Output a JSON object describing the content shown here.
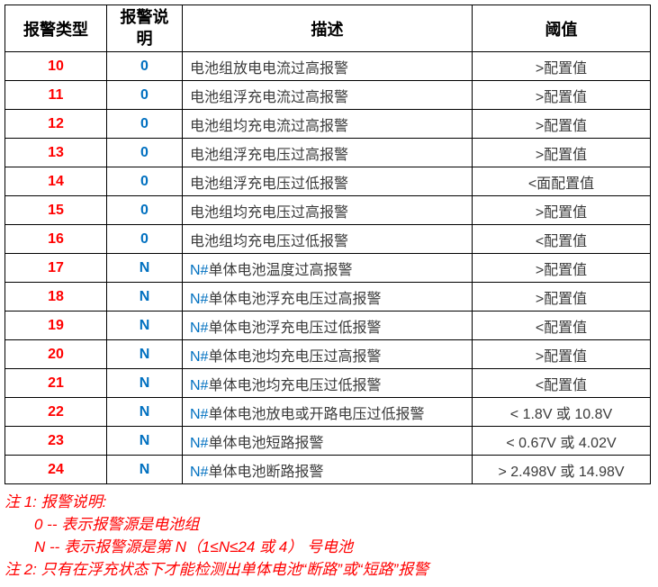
{
  "table": {
    "headers": [
      "报警类型",
      "报警说明",
      "描述",
      "阈值"
    ],
    "rows": [
      {
        "type": "10",
        "source": "0",
        "desc_prefix": "",
        "desc": "电池组放电电流过高报警",
        "threshold": ">配置值"
      },
      {
        "type": "11",
        "source": "0",
        "desc_prefix": "",
        "desc": "电池组浮充电流过高报警",
        "threshold": ">配置值"
      },
      {
        "type": "12",
        "source": "0",
        "desc_prefix": "",
        "desc": "电池组均充电流过高报警",
        "threshold": ">配置值"
      },
      {
        "type": "13",
        "source": "0",
        "desc_prefix": "",
        "desc": "电池组浮充电压过高报警",
        "threshold": ">配置值"
      },
      {
        "type": "14",
        "source": "0",
        "desc_prefix": "",
        "desc": "电池组浮充电压过低报警",
        "threshold": "<面配置值"
      },
      {
        "type": "15",
        "source": "0",
        "desc_prefix": "",
        "desc": "电池组均充电压过高报警",
        "threshold": ">配置值"
      },
      {
        "type": "16",
        "source": "0",
        "desc_prefix": "",
        "desc": "电池组均充电压过低报警",
        "threshold": "<配置值"
      },
      {
        "type": "17",
        "source": "N",
        "desc_prefix": "N#",
        "desc": "单体电池温度过高报警",
        "threshold": ">配置值"
      },
      {
        "type": "18",
        "source": "N",
        "desc_prefix": "N#",
        "desc": "单体电池浮充电压过高报警",
        "threshold": ">配置值"
      },
      {
        "type": "19",
        "source": "N",
        "desc_prefix": "N#",
        "desc": "单体电池浮充电压过低报警",
        "threshold": "<配置值"
      },
      {
        "type": "20",
        "source": "N",
        "desc_prefix": "N#",
        "desc": "单体电池均充电压过高报警",
        "threshold": ">配置值"
      },
      {
        "type": "21",
        "source": "N",
        "desc_prefix": "N#",
        "desc": "单体电池均充电压过低报警",
        "threshold": "<配置值"
      },
      {
        "type": "22",
        "source": "N",
        "desc_prefix": "N#",
        "desc": "单体电池放电或开路电压过低报警",
        "threshold": "< 1.8V 或 10.8V"
      },
      {
        "type": "23",
        "source": "N",
        "desc_prefix": "N#",
        "desc": "单体电池短路报警",
        "threshold": "< 0.67V 或 4.02V"
      },
      {
        "type": "24",
        "source": "N",
        "desc_prefix": "N#",
        "desc": "单体电池断路报警",
        "threshold": "> 2.498V  或 14.98V"
      }
    ]
  },
  "notes": {
    "note1_title": "注 1:  报警说明:",
    "note1_item0": "0 --  表示报警源是电池组",
    "note1_itemN": "N --  表示报警源是第 N（1≤N≤24 或 4） 号电池",
    "note2": "注 2:  只有在浮充状态下才能检测出单体电池“断路”或“短路”报警"
  },
  "colors": {
    "alarm_type_red": "#FF0000",
    "source_blue": "#0070C0",
    "body_text": "#3B3B3B",
    "border": "#000000",
    "note_red": "#FF0000"
  }
}
